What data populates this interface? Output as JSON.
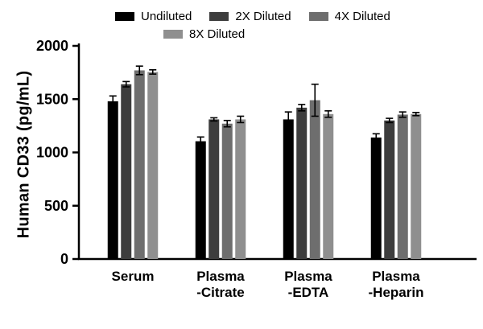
{
  "chart_data": {
    "type": "bar",
    "title": "",
    "xlabel": "",
    "ylabel": "Human CD33 (pg/mL)",
    "ylim": [
      0,
      2000
    ],
    "yticks": [
      0,
      500,
      1000,
      1500,
      2000
    ],
    "grid": false,
    "legend_position": "top",
    "categories": [
      "Serum",
      "Plasma\n-Citrate",
      "Plasma\n-EDTA",
      "Plasma\n-Heparin"
    ],
    "series": [
      {
        "name": "Undiluted",
        "color": "#000000",
        "values": [
          1480,
          1105,
          1310,
          1140
        ],
        "errors": [
          50,
          40,
          70,
          35
        ]
      },
      {
        "name": "2X Diluted",
        "color": "#3d3d3d",
        "values": [
          1640,
          1310,
          1420,
          1300
        ],
        "errors": [
          25,
          15,
          30,
          20
        ]
      },
      {
        "name": "4X Diluted",
        "color": "#6e6e6e",
        "values": [
          1770,
          1270,
          1490,
          1355
        ],
        "errors": [
          40,
          30,
          150,
          25
        ]
      },
      {
        "name": "8X Diluted",
        "color": "#8f8f8f",
        "values": [
          1755,
          1310,
          1360,
          1360
        ],
        "errors": [
          20,
          30,
          30,
          15
        ]
      }
    ]
  }
}
